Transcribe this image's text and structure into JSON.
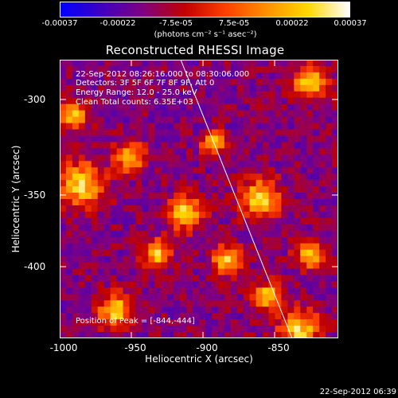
{
  "colorbar": {
    "ticks": [
      "-0.00037",
      "-0.00022",
      "-7.5e-05",
      "7.5e-05",
      "0.00022",
      "0.00037"
    ],
    "unit_label": "(photons cm⁻² s⁻¹ asec⁻²)",
    "min": -0.00037,
    "max": 0.00037,
    "colors": [
      "#0000ff",
      "#4000c0",
      "#800080",
      "#c00000",
      "#ff4000",
      "#ff9000",
      "#ffd800",
      "#ffffff"
    ]
  },
  "title": "Reconstructed RHESSI Image",
  "info": {
    "line1": "22-Sep-2012 08:26:16.000 to 08:30:06.000",
    "line2": "Detectors: 3F 5F 6F 7F 8F 9F, Att 0",
    "line3": "Energy Range: 12.0 - 25.0 keV",
    "line4": "Clean    Total counts: 6.35E+03"
  },
  "peak_label": "Position of Peak = [-844,-444]",
  "axes": {
    "x_label": "Heliocentric X (arcsec)",
    "y_label": "Heliocentric Y (arcsec)",
    "x_ticks": [
      "-1000",
      "-950",
      "-900",
      "-850"
    ],
    "y_ticks": [
      "-300",
      "-350",
      "-400"
    ]
  },
  "timestamp": "22-Sep-2012 06:39"
}
